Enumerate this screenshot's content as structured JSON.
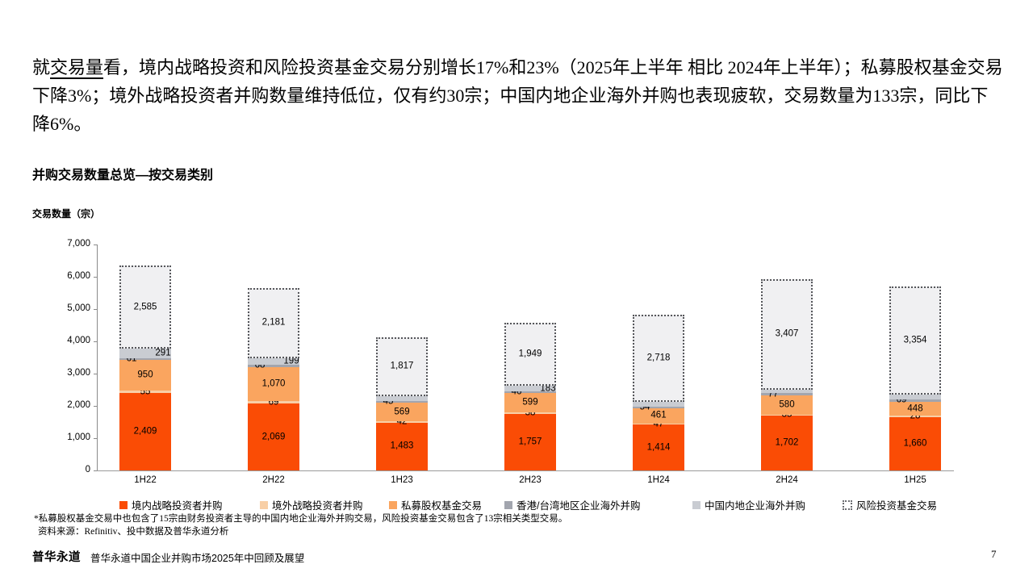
{
  "intro": {
    "prefix": "就",
    "underlined": "交易量",
    "rest": "看，境内战略投资和风险投资基金交易分别增长17%和23%（2025年上半年 相比 2024年上半年）；私募股权基金交易下降3%；境外战略投资者并购数量维持低位，仅有约30宗；中国内地企业海外并购也表现疲软，交易数量为133宗，同比下降6%。"
  },
  "chart": {
    "title": "并购交易数量总览—按交易类别",
    "axis_label": "交易数量（宗）"
  },
  "chart_data": {
    "type": "bar",
    "stacked": true,
    "categories": [
      "1H22",
      "2H22",
      "1H23",
      "2H23",
      "1H24",
      "2H24",
      "1H25"
    ],
    "series": [
      {
        "name": "境内战略投资者并购",
        "color": "#fa4c05",
        "values": [
          2409,
          2069,
          1483,
          1757,
          1414,
          1702,
          1660
        ]
      },
      {
        "name": "境外战略投资者并购",
        "color": "#f8cfa6",
        "values": [
          55,
          69,
          42,
          38,
          47,
          35,
          28
        ]
      },
      {
        "name": "私募股权基金交易",
        "color": "#faa55f",
        "values": [
          950,
          1070,
          569,
          599,
          461,
          580,
          448
        ]
      },
      {
        "name": "香港/台湾地区企业海外并购",
        "color": "#a2a5ae",
        "values": [
          61,
          68,
          45,
          46,
          54,
          77,
          69
        ]
      },
      {
        "name": "中国内地企业海外并购",
        "color": "#c9ccd2",
        "values": [
          291,
          199,
          171,
          183,
          142,
          117,
          133
        ]
      },
      {
        "name": "风险投资基金交易",
        "color": "#f0f0f2",
        "pattern": "dotted",
        "border_color": "#55565a",
        "values": [
          2585,
          2181,
          1817,
          1949,
          2718,
          3407,
          3354
        ]
      }
    ],
    "ylim": [
      0,
      7000
    ],
    "ytick_interval": 1000,
    "ytick_labels": [
      "0",
      "1,000",
      "2,000",
      "3,000",
      "4,000",
      "5,000",
      "6,000",
      "7,000"
    ],
    "grid": false,
    "legend_position": "bottom"
  },
  "footnotes": {
    "note": "*私募股权基金交易中也包含了15宗由财务投资者主导的中国内地企业海外并购交易，风险投资基金交易包含了13宗相关类型交易。",
    "source": "资料来源：Refinitiv、投中数据及普华永道分析"
  },
  "footer": {
    "logo": "普华永道",
    "title": "普华永道中国企业并购市场2025年中回顾及展望",
    "page": "7"
  }
}
